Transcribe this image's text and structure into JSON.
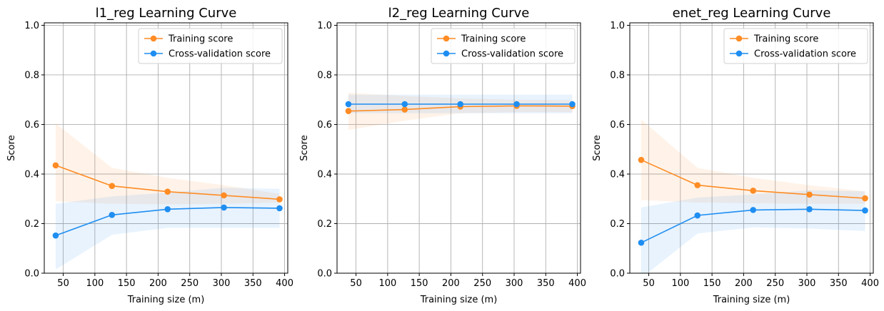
{
  "chart_data": [
    {
      "type": "line",
      "title": "l1_reg Learning Curve",
      "xlabel": "Training size (m)",
      "ylabel": "Score",
      "xlim": [
        20,
        405
      ],
      "ylim": [
        0,
        1.01
      ],
      "xticks": [
        50,
        100,
        150,
        200,
        250,
        300,
        350,
        400
      ],
      "yticks": [
        0.0,
        0.2,
        0.4,
        0.6,
        0.8,
        1.0
      ],
      "grid": true,
      "legend_position": "upper right",
      "x": [
        38,
        127,
        215,
        304,
        392
      ],
      "series": [
        {
          "name": "Training score",
          "color": "#ff8c24",
          "values": [
            0.435,
            0.352,
            0.329,
            0.314,
            0.298
          ],
          "band_upper": [
            0.605,
            0.425,
            0.385,
            0.355,
            0.32
          ],
          "band_lower": [
            0.29,
            0.28,
            0.278,
            0.28,
            0.285
          ]
        },
        {
          "name": "Cross-validation score",
          "color": "#1f8ef1",
          "values": [
            0.152,
            0.235,
            0.258,
            0.265,
            0.262
          ],
          "band_upper": [
            0.28,
            0.31,
            0.325,
            0.345,
            0.34
          ],
          "band_lower": [
            0.015,
            0.155,
            0.183,
            0.183,
            0.183
          ]
        }
      ]
    },
    {
      "type": "line",
      "title": "l2_reg Learning Curve",
      "xlabel": "Training size (m)",
      "ylabel": "Score",
      "xlim": [
        20,
        405
      ],
      "ylim": [
        0,
        1.01
      ],
      "xticks": [
        50,
        100,
        150,
        200,
        250,
        300,
        350,
        400
      ],
      "yticks": [
        0.0,
        0.2,
        0.4,
        0.6,
        0.8,
        1.0
      ],
      "grid": true,
      "legend_position": "upper right",
      "x": [
        38,
        127,
        215,
        304,
        392
      ],
      "series": [
        {
          "name": "Training score",
          "color": "#ff8c24",
          "values": [
            0.654,
            0.66,
            0.672,
            0.675,
            0.674
          ],
          "band_upper": [
            0.728,
            0.715,
            0.705,
            0.7,
            0.698
          ],
          "band_lower": [
            0.578,
            0.615,
            0.645,
            0.65,
            0.65
          ]
        },
        {
          "name": "Cross-validation score",
          "color": "#1f8ef1",
          "values": [
            0.682,
            0.682,
            0.682,
            0.682,
            0.682
          ],
          "band_upper": [
            0.72,
            0.72,
            0.72,
            0.72,
            0.72
          ],
          "band_lower": [
            0.645,
            0.645,
            0.645,
            0.645,
            0.645
          ]
        }
      ]
    },
    {
      "type": "line",
      "title": "enet_reg Learning Curve",
      "xlabel": "Training size (m)",
      "ylabel": "Score",
      "xlim": [
        20,
        405
      ],
      "ylim": [
        0,
        1.01
      ],
      "xticks": [
        50,
        100,
        150,
        200,
        250,
        300,
        350,
        400
      ],
      "yticks": [
        0.0,
        0.2,
        0.4,
        0.6,
        0.8,
        1.0
      ],
      "grid": true,
      "legend_position": "upper right",
      "x": [
        38,
        127,
        215,
        304,
        392
      ],
      "series": [
        {
          "name": "Training score",
          "color": "#ff8c24",
          "values": [
            0.457,
            0.355,
            0.333,
            0.317,
            0.302
          ],
          "band_upper": [
            0.62,
            0.425,
            0.385,
            0.355,
            0.33
          ],
          "band_lower": [
            0.295,
            0.285,
            0.282,
            0.28,
            0.28
          ]
        },
        {
          "name": "Cross-validation score",
          "color": "#1f8ef1",
          "values": [
            0.123,
            0.233,
            0.255,
            0.258,
            0.253
          ],
          "band_upper": [
            0.265,
            0.305,
            0.318,
            0.335,
            0.33
          ],
          "band_lower": [
            -0.02,
            0.16,
            0.185,
            0.18,
            0.17
          ]
        }
      ]
    }
  ]
}
